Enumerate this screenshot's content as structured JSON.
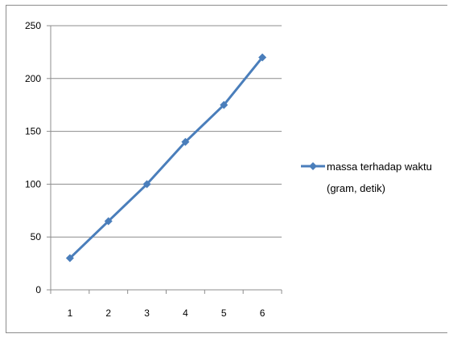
{
  "chart_data": {
    "type": "line",
    "x": [
      1,
      2,
      3,
      4,
      5,
      6
    ],
    "series": [
      {
        "name": "massa terhadap waktu (gram, detik)",
        "values": [
          30,
          65,
          100,
          140,
          175,
          220
        ],
        "color": "#4a7ebb"
      }
    ],
    "xlabel": "",
    "ylabel": "",
    "ylim": [
      0,
      250
    ],
    "yticks": [
      0,
      50,
      100,
      150,
      200,
      250
    ],
    "xticks": [
      "1",
      "2",
      "3",
      "4",
      "5",
      "6"
    ],
    "grid": "horizontal",
    "legend_position": "right",
    "legend_lines": [
      "massa terhadap waktu",
      "(gram, detik)"
    ],
    "marker": "diamond"
  }
}
